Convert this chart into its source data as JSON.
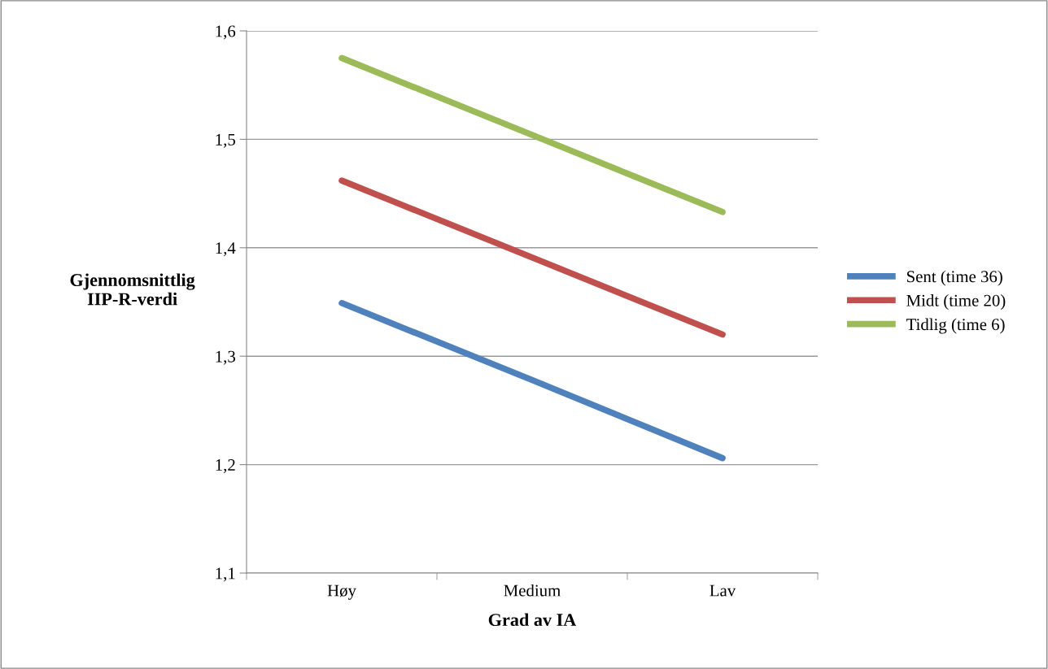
{
  "chart_data": {
    "type": "line",
    "xlabel": "Grad av IA",
    "ylabel": "Gjennomsnittlig\nIIP-R-verdi",
    "categories": [
      "Høy",
      "Medium",
      "Lav"
    ],
    "series": [
      {
        "name": "Sent (time 36)",
        "color": "#4f81bd",
        "values": [
          1.349,
          1.278,
          1.206
        ]
      },
      {
        "name": "Midt (time 20)",
        "color": "#c0504d",
        "values": [
          1.462,
          1.391,
          1.32
        ]
      },
      {
        "name": "Tidlig (time 6)",
        "color": "#9bbb59",
        "values": [
          1.575,
          1.504,
          1.433
        ]
      }
    ],
    "ylim": [
      1.1,
      1.6
    ],
    "yticks": [
      {
        "value": 1.1,
        "label": "1,1"
      },
      {
        "value": 1.2,
        "label": "1,2"
      },
      {
        "value": 1.3,
        "label": "1,3"
      },
      {
        "value": 1.4,
        "label": "1,4"
      },
      {
        "value": 1.5,
        "label": "1,5"
      },
      {
        "value": 1.6,
        "label": "1,6"
      }
    ],
    "grid": "y",
    "legend": "right",
    "marker": "none",
    "line_style": "solid"
  }
}
